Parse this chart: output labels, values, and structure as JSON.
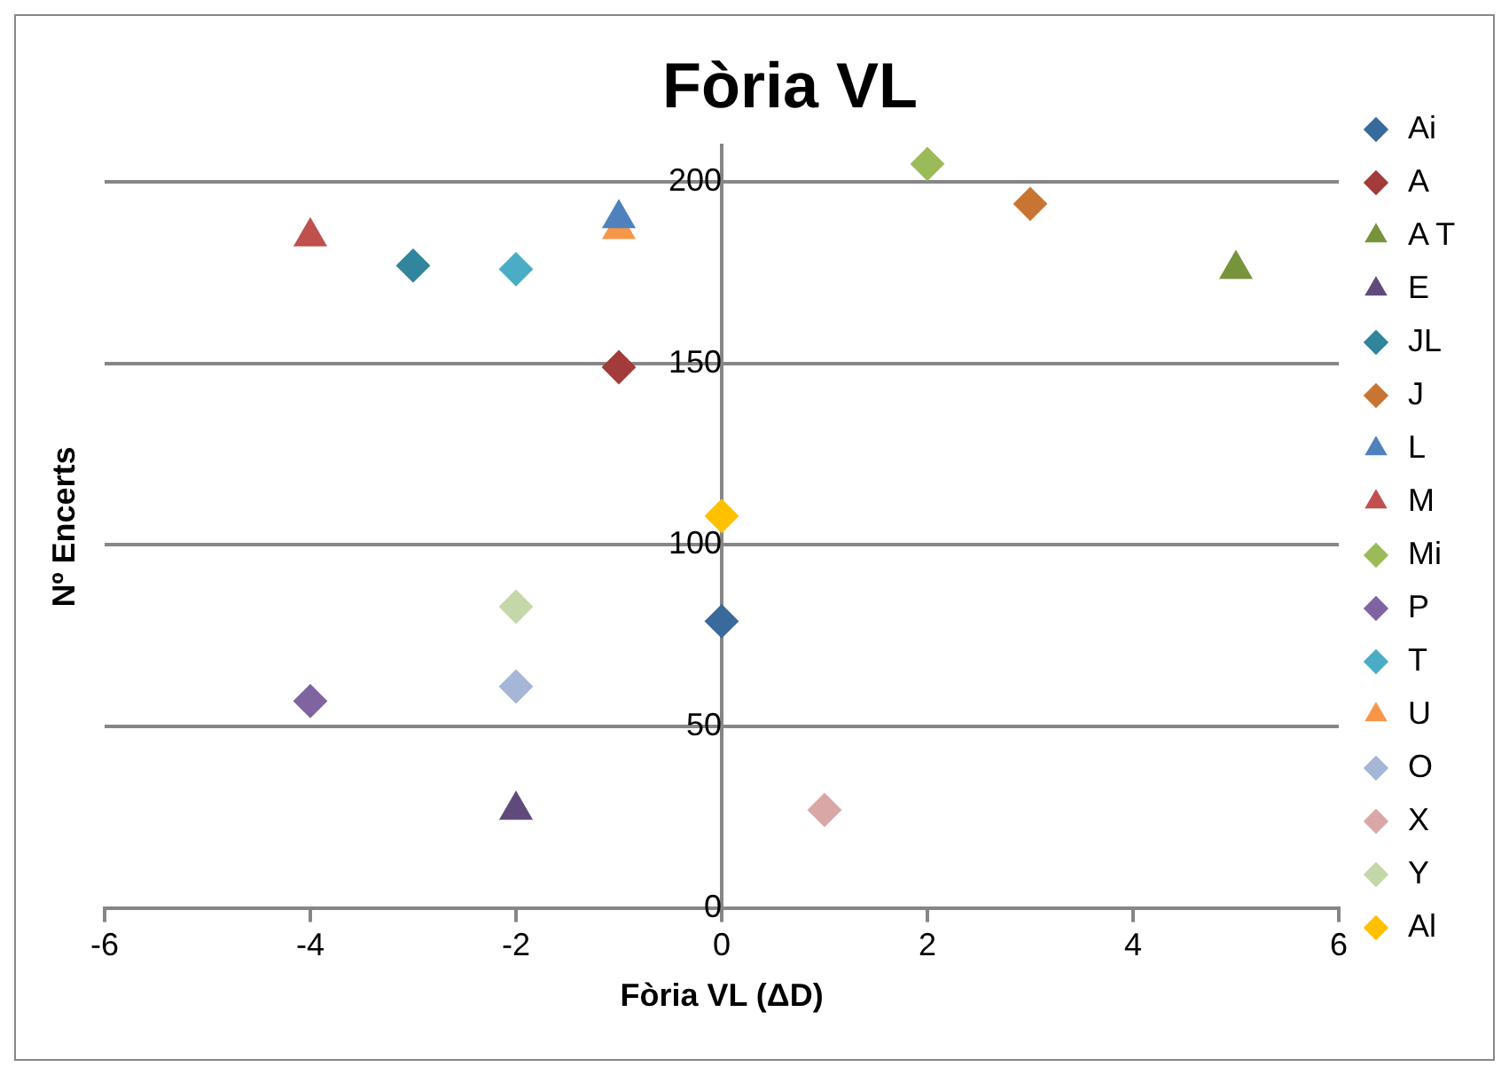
{
  "chart_data": {
    "type": "scatter",
    "title": "Fòria VL",
    "xlabel": "Fòria VL (ΔD)",
    "ylabel": "Nº Encerts",
    "xlim": [
      -6,
      6
    ],
    "xticks": [
      -6,
      -4,
      -2,
      0,
      2,
      4,
      6
    ],
    "ylim": [
      0,
      210
    ],
    "yticks": [
      0,
      50,
      100,
      150,
      200
    ],
    "grid": "y",
    "legend": "right",
    "series": [
      {
        "name": "Ai",
        "color": "#386a9c",
        "marker": "diamond",
        "x": [
          0
        ],
        "values": [
          79
        ]
      },
      {
        "name": "A",
        "color": "#a33b3a",
        "marker": "diamond",
        "x": [
          -1
        ],
        "values": [
          149
        ]
      },
      {
        "name": "A T",
        "color": "#77943c",
        "marker": "triangle",
        "x": [
          5
        ],
        "values": [
          176
        ]
      },
      {
        "name": "E",
        "color": "#604a7b",
        "marker": "triangle",
        "x": [
          -2
        ],
        "values": [
          27
        ]
      },
      {
        "name": "JL",
        "color": "#31859c",
        "marker": "diamond",
        "x": [
          -3
        ],
        "values": [
          177
        ]
      },
      {
        "name": "J",
        "color": "#c87533",
        "marker": "diamond",
        "x": [
          3
        ],
        "values": [
          194
        ]
      },
      {
        "name": "L",
        "color": "#4f81bd",
        "marker": "triangle",
        "x": [
          -1
        ],
        "values": [
          190
        ]
      },
      {
        "name": "M",
        "color": "#c0504d",
        "marker": "triangle",
        "x": [
          -4
        ],
        "values": [
          185
        ]
      },
      {
        "name": "Mi",
        "color": "#9bbb59",
        "marker": "diamond",
        "x": [
          2
        ],
        "values": [
          205
        ]
      },
      {
        "name": "P",
        "color": "#8064a2",
        "marker": "diamond",
        "x": [
          -4
        ],
        "values": [
          57
        ]
      },
      {
        "name": "T",
        "color": "#4bacc6",
        "marker": "diamond",
        "x": [
          -2
        ],
        "values": [
          176
        ]
      },
      {
        "name": "U",
        "color": "#f79646",
        "marker": "triangle",
        "x": [
          -1
        ],
        "values": [
          187
        ]
      },
      {
        "name": "O",
        "color": "#a5b6d6",
        "marker": "diamond",
        "x": [
          -2
        ],
        "values": [
          61
        ]
      },
      {
        "name": "X",
        "color": "#d9a7a6",
        "marker": "diamond",
        "x": [
          1
        ],
        "values": [
          27
        ]
      },
      {
        "name": "Y",
        "color": "#c4d7a9",
        "marker": "diamond",
        "x": [
          -2
        ],
        "values": [
          83
        ]
      },
      {
        "name": "Al",
        "color": "#ffc000",
        "marker": "diamond",
        "x": [
          0
        ],
        "values": [
          108
        ]
      }
    ]
  }
}
